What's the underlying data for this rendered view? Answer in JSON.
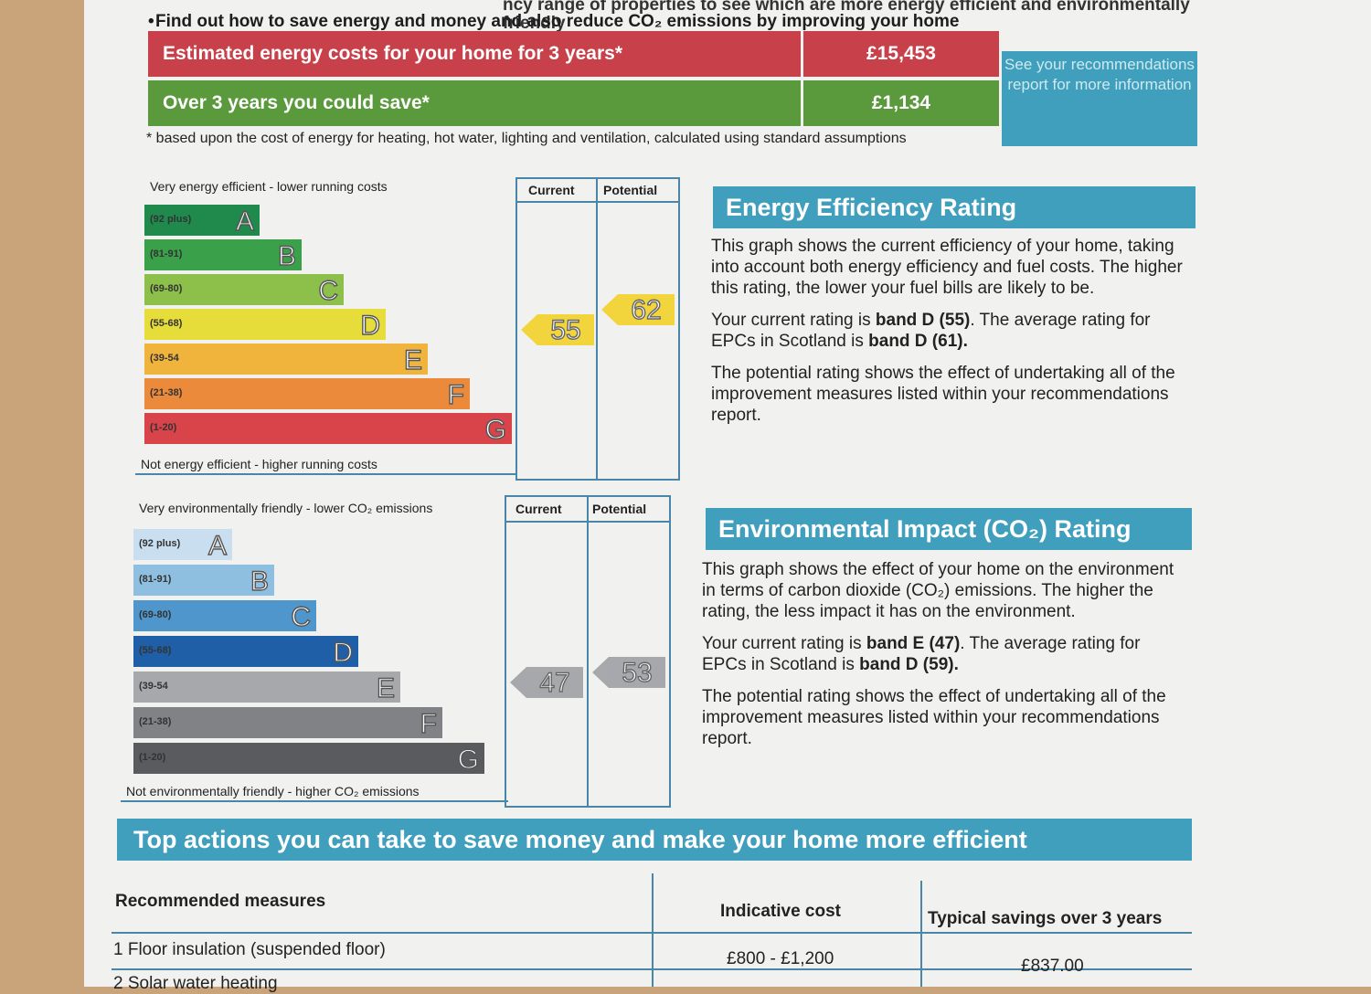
{
  "intro": {
    "line1": "ncy range of properties to see which are more energy efficient and environmentally friendly",
    "bullet": "•",
    "line2": "Find out how to save energy and money and also reduce CO₂ emissions by improving your home"
  },
  "costs": {
    "estimated_label": "Estimated energy costs for your home for 3 years*",
    "estimated_value": "£15,453",
    "save_label": "Over 3 years you could save*",
    "save_value": "£1,134",
    "see_box": "See your recommendations report for more information",
    "footnote": "* based upon the cost of energy for heating, hot water, lighting and ventilation, calculated using standard assumptions"
  },
  "energy_chart": {
    "top_label": "Very energy efficient - lower running costs",
    "bottom_label": "Not energy efficient - higher running costs",
    "current_header": "Current",
    "potential_header": "Potential",
    "bands": [
      {
        "range": "(92 plus)",
        "letter": "A",
        "color": "#1f8a4c"
      },
      {
        "range": "(81-91)",
        "letter": "B",
        "color": "#3aa14a"
      },
      {
        "range": "(69-80)",
        "letter": "C",
        "color": "#8cc04a"
      },
      {
        "range": "(55-68)",
        "letter": "D",
        "color": "#e6dc3a"
      },
      {
        "range": "(39-54",
        "letter": "E",
        "color": "#f0b43c"
      },
      {
        "range": "(21-38)",
        "letter": "F",
        "color": "#ec8a3c"
      },
      {
        "range": "(1-20)",
        "letter": "G",
        "color": "#d8444a"
      }
    ],
    "current_value": "55",
    "potential_value": "62",
    "marker_color": "#f2d43c"
  },
  "co2_chart": {
    "top_label": "Very environmentally friendly - lower CO₂ emissions",
    "bottom_label": "Not environmentally friendly - higher CO₂ emissions",
    "current_header": "Current",
    "potential_header": "Potential",
    "bands": [
      {
        "range": "(92 plus)",
        "letter": "A",
        "color": "#c9dff0"
      },
      {
        "range": "(81-91)",
        "letter": "B",
        "color": "#8fbfe0"
      },
      {
        "range": "(69-80)",
        "letter": "C",
        "color": "#4e96cc"
      },
      {
        "range": "(55-68)",
        "letter": "D",
        "color": "#1f5fa8"
      },
      {
        "range": "(39-54",
        "letter": "E",
        "color": "#a6a8ab"
      },
      {
        "range": "(21-38)",
        "letter": "F",
        "color": "#808285"
      },
      {
        "range": "(1-20)",
        "letter": "G",
        "color": "#5a5b5e"
      }
    ],
    "current_value": "47",
    "potential_value": "53",
    "marker_color": "#a6a8ab"
  },
  "eer_panel": {
    "title": "Energy Efficiency Rating",
    "p1": "This graph shows the current efficiency of your home, taking into account both energy efficiency and fuel costs. The higher this rating, the lower your fuel bills are likely to be.",
    "p2_pre": "Your current rating is ",
    "p2_b1": "band D (55)",
    "p2_mid": ". The average rating for EPCs in Scotland is ",
    "p2_b2": "band D (61).",
    "p3": "The potential rating shows the effect of undertaking all of the improvement measures listed within your recommendations report."
  },
  "eir_panel": {
    "title": "Environmental Impact (CO₂) Rating",
    "p1": "This graph shows the effect of your home on the environment in terms of carbon dioxide (CO₂) emissions. The higher the rating, the less impact it has on the environment.",
    "p2_pre": "Your current rating is ",
    "p2_b1": "band E (47)",
    "p2_mid": ". The average rating for EPCs in Scotland is ",
    "p2_b2": "band D (59).",
    "p3": "The potential rating shows the effect of undertaking all of the improvement measures listed within your recommendations report."
  },
  "actions": {
    "title": "Top actions you can take to save money and make your home more efficient",
    "col1": "Recommended measures",
    "col2": "Indicative cost",
    "col3": "Typical savings over 3 years",
    "rows": [
      {
        "measure": "1 Floor insulation (suspended floor)",
        "cost": "£800 - £1,200",
        "savings": "£837.00"
      },
      {
        "measure": "2 Solar water heating",
        "cost": "",
        "savings": ""
      }
    ]
  }
}
